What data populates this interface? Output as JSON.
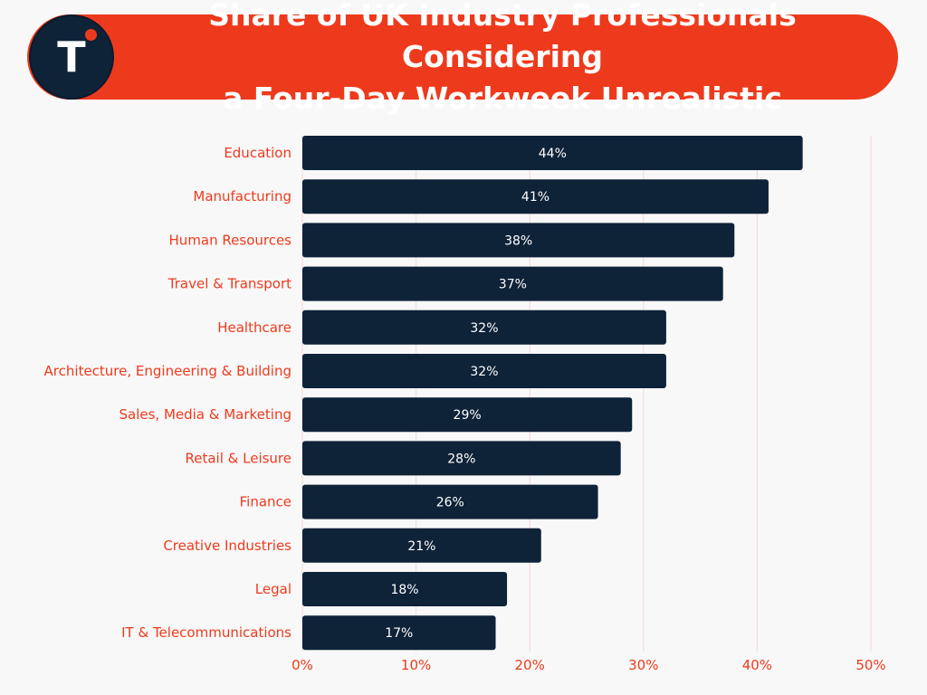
{
  "header": {
    "logo_letter": "T",
    "title_line1": "Share of UK Industry Professionals Considering",
    "title_line2": "a Four-Day Workweek Unrealistic"
  },
  "colors": {
    "bar": "#0e2238",
    "accent": "#ee3a1c",
    "bar_label": "#ffffff",
    "grid": "#f3d9d5"
  },
  "chart_data": {
    "type": "bar",
    "orientation": "horizontal",
    "categories": [
      "Education",
      "Manufacturing",
      "Human Resources",
      "Travel & Transport",
      "Healthcare",
      "Architecture, Engineering & Building",
      "Sales, Media & Marketing",
      "Retail & Leisure",
      "Finance",
      "Creative Industries",
      "Legal",
      "IT & Telecommunications"
    ],
    "values": [
      44,
      41,
      38,
      37,
      32,
      32,
      29,
      28,
      26,
      21,
      18,
      17
    ],
    "value_labels": [
      "44%",
      "41%",
      "38%",
      "37%",
      "32%",
      "32%",
      "29%",
      "28%",
      "26%",
      "21%",
      "18%",
      "17%"
    ],
    "xlim": [
      0,
      50
    ],
    "xticks": [
      0,
      10,
      20,
      30,
      40,
      50
    ],
    "xtick_labels": [
      "0%",
      "10%",
      "20%",
      "30%",
      "40%",
      "50%"
    ],
    "xlabel": "",
    "ylabel": "",
    "grid": true
  }
}
